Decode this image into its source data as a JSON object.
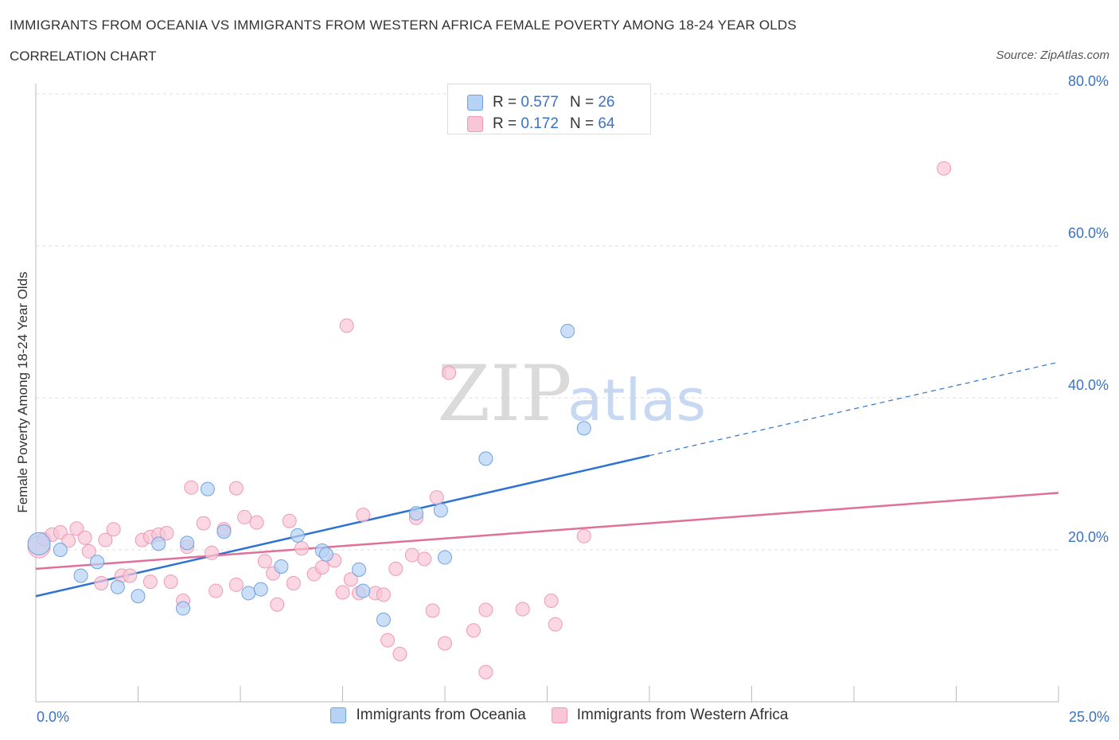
{
  "title": "IMMIGRANTS FROM OCEANIA VS IMMIGRANTS FROM WESTERN AFRICA FEMALE POVERTY AMONG 18-24 YEAR OLDS",
  "subtitle": "CORRELATION CHART",
  "source": "Source: ZipAtlas.com",
  "watermark": {
    "zip": "ZIP",
    "atlas": "atlas"
  },
  "legend_top": [
    {
      "r_label": "R =",
      "r_value": "0.577",
      "n_label": "N =",
      "n_value": "26",
      "color": "#b6d2f5"
    },
    {
      "r_label": "R =",
      "r_value": "0.172",
      "n_label": "N =",
      "n_value": "64",
      "color": "#f8c6d6"
    }
  ],
  "chart_data": {
    "type": "scatter",
    "xlabel": "",
    "ylabel": "Female Poverty Among 18-24 Year Olds",
    "xlim": [
      0,
      25
    ],
    "ylim": [
      0,
      80
    ],
    "x_tick_labels": [
      "0.0%",
      "25.0%"
    ],
    "y_ticks": [
      20,
      40,
      60,
      80
    ],
    "y_tick_labels": [
      "20.0%",
      "40.0%",
      "60.0%",
      "80.0%"
    ],
    "grid": true,
    "legend_placement": "bottom",
    "series": [
      {
        "name": "Immigrants from Oceania",
        "color": "#6fa3df",
        "fill": "#b6d2f5",
        "line_color": "#2e72d2",
        "trend": {
          "x0": 0,
          "y0": 13.9,
          "x1": 15,
          "y1": 32.4,
          "dash_to_x": 25,
          "dash_to_y": 44.7
        },
        "points": [
          [
            0.0,
            20.8
          ],
          [
            0.6,
            20.0
          ],
          [
            1.1,
            16.6
          ],
          [
            1.5,
            18.4
          ],
          [
            2.0,
            15.1
          ],
          [
            2.5,
            13.9
          ],
          [
            3.0,
            20.8
          ],
          [
            3.6,
            12.3
          ],
          [
            3.7,
            20.9
          ],
          [
            4.2,
            28.0
          ],
          [
            4.6,
            22.4
          ],
          [
            5.2,
            14.3
          ],
          [
            5.5,
            14.8
          ],
          [
            6.0,
            17.8
          ],
          [
            6.4,
            21.9
          ],
          [
            7.0,
            19.9
          ],
          [
            7.1,
            19.4
          ],
          [
            7.9,
            17.4
          ],
          [
            8.0,
            14.6
          ],
          [
            8.5,
            10.8
          ],
          [
            9.3,
            24.8
          ],
          [
            9.9,
            25.2
          ],
          [
            10.0,
            19.0
          ],
          [
            11.0,
            32.0
          ],
          [
            13.0,
            48.8
          ],
          [
            13.4,
            36.0
          ]
        ]
      },
      {
        "name": "Immigrants from Western Africa",
        "color": "#ee9ab5",
        "fill": "#f8c6d6",
        "line_color": "#e0709a",
        "trend": {
          "x0": 0,
          "y0": 17.5,
          "x1": 25,
          "y1": 27.5
        },
        "points": [
          [
            0.0,
            20.4
          ],
          [
            0.2,
            21.4
          ],
          [
            0.4,
            22.0
          ],
          [
            0.6,
            22.3
          ],
          [
            0.8,
            21.2
          ],
          [
            1.0,
            22.8
          ],
          [
            1.2,
            21.6
          ],
          [
            1.3,
            19.8
          ],
          [
            1.6,
            15.6
          ],
          [
            1.7,
            21.3
          ],
          [
            1.9,
            22.7
          ],
          [
            2.1,
            16.6
          ],
          [
            2.3,
            16.6
          ],
          [
            2.6,
            21.3
          ],
          [
            2.8,
            21.7
          ],
          [
            2.8,
            15.8
          ],
          [
            3.0,
            22.0
          ],
          [
            3.2,
            22.2
          ],
          [
            3.3,
            15.8
          ],
          [
            3.6,
            13.3
          ],
          [
            3.7,
            20.4
          ],
          [
            3.8,
            28.2
          ],
          [
            4.1,
            23.5
          ],
          [
            4.3,
            19.6
          ],
          [
            4.4,
            14.6
          ],
          [
            4.6,
            22.7
          ],
          [
            4.9,
            28.1
          ],
          [
            4.9,
            15.4
          ],
          [
            5.1,
            24.3
          ],
          [
            5.4,
            23.6
          ],
          [
            5.6,
            18.5
          ],
          [
            5.8,
            16.9
          ],
          [
            5.9,
            12.8
          ],
          [
            6.2,
            23.8
          ],
          [
            6.3,
            15.6
          ],
          [
            6.5,
            20.2
          ],
          [
            6.8,
            16.8
          ],
          [
            7.0,
            17.7
          ],
          [
            7.3,
            18.6
          ],
          [
            7.5,
            14.4
          ],
          [
            7.6,
            49.5
          ],
          [
            7.7,
            16.1
          ],
          [
            7.9,
            14.3
          ],
          [
            8.0,
            24.6
          ],
          [
            8.3,
            14.3
          ],
          [
            8.5,
            14.1
          ],
          [
            8.6,
            8.1
          ],
          [
            8.8,
            17.5
          ],
          [
            8.9,
            6.3
          ],
          [
            9.2,
            19.3
          ],
          [
            9.3,
            24.2
          ],
          [
            9.5,
            18.8
          ],
          [
            9.7,
            12.0
          ],
          [
            9.8,
            26.9
          ],
          [
            10.0,
            7.7
          ],
          [
            10.1,
            43.3
          ],
          [
            10.7,
            9.4
          ],
          [
            11.0,
            12.1
          ],
          [
            11.0,
            3.9
          ],
          [
            11.9,
            12.2
          ],
          [
            12.6,
            13.3
          ],
          [
            12.7,
            10.2
          ],
          [
            13.4,
            21.8
          ],
          [
            22.2,
            70.2
          ]
        ]
      }
    ]
  }
}
